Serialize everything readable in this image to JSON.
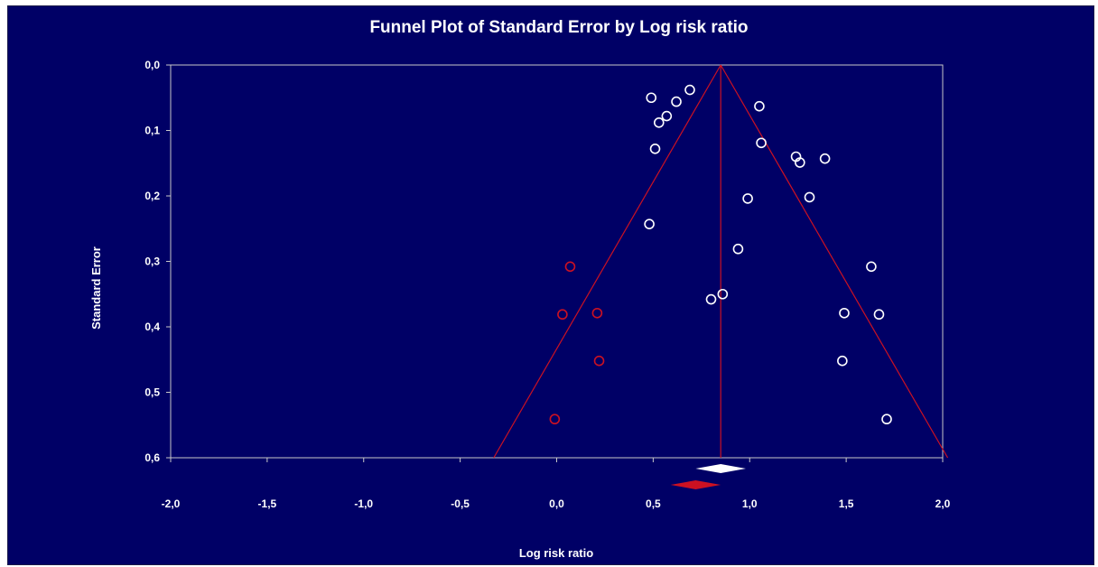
{
  "chart_data": {
    "type": "scatter",
    "title": "Funnel Plot of Standard Error by Log risk ratio",
    "xlabel": "Log risk ratio",
    "ylabel": "Standard Error",
    "xlim": [
      -2.0,
      2.0
    ],
    "ylim": [
      0.0,
      0.6
    ],
    "y_inverted": true,
    "x_ticks": [
      "-2,0",
      "-1,5",
      "-1,0",
      "-0,5",
      "0,0",
      "0,5",
      "1,0",
      "1,5",
      "2,0"
    ],
    "y_ticks": [
      "0,0",
      "0,1",
      "0,2",
      "0,3",
      "0,4",
      "0,5",
      "0,6"
    ],
    "grid": false,
    "colors": {
      "background": "#000066",
      "axes": "#c8c8c8",
      "observed": "#ffffff",
      "imputed": "#cc1122",
      "funnel": "#cc1122"
    },
    "funnel": {
      "center": 0.85
    },
    "series": [
      {
        "kind": "observed",
        "points": [
          {
            "x": 0.49,
            "y": 0.05
          },
          {
            "x": 0.69,
            "y": 0.038
          },
          {
            "x": 0.62,
            "y": 0.056
          },
          {
            "x": 0.57,
            "y": 0.078
          },
          {
            "x": 0.53,
            "y": 0.088
          },
          {
            "x": 1.05,
            "y": 0.063
          },
          {
            "x": 0.51,
            "y": 0.128
          },
          {
            "x": 1.06,
            "y": 0.119
          },
          {
            "x": 1.24,
            "y": 0.14
          },
          {
            "x": 1.26,
            "y": 0.149
          },
          {
            "x": 1.39,
            "y": 0.143
          },
          {
            "x": 0.99,
            "y": 0.204
          },
          {
            "x": 1.31,
            "y": 0.202
          },
          {
            "x": 0.48,
            "y": 0.243
          },
          {
            "x": 0.94,
            "y": 0.281
          },
          {
            "x": 1.63,
            "y": 0.308
          },
          {
            "x": 0.8,
            "y": 0.358
          },
          {
            "x": 0.86,
            "y": 0.35
          },
          {
            "x": 1.49,
            "y": 0.379
          },
          {
            "x": 1.67,
            "y": 0.381
          },
          {
            "x": 1.48,
            "y": 0.452
          },
          {
            "x": 1.71,
            "y": 0.541
          }
        ]
      },
      {
        "kind": "imputed",
        "points": [
          {
            "x": 0.07,
            "y": 0.308
          },
          {
            "x": 0.03,
            "y": 0.381
          },
          {
            "x": 0.21,
            "y": 0.379
          },
          {
            "x": 0.22,
            "y": 0.452
          },
          {
            "x": -0.01,
            "y": 0.541
          }
        ]
      }
    ],
    "summary": {
      "observed": {
        "estimate": 0.85,
        "low": 0.72,
        "high": 0.98
      },
      "adjusted": {
        "estimate": 0.72,
        "low": 0.59,
        "high": 0.85
      }
    }
  }
}
